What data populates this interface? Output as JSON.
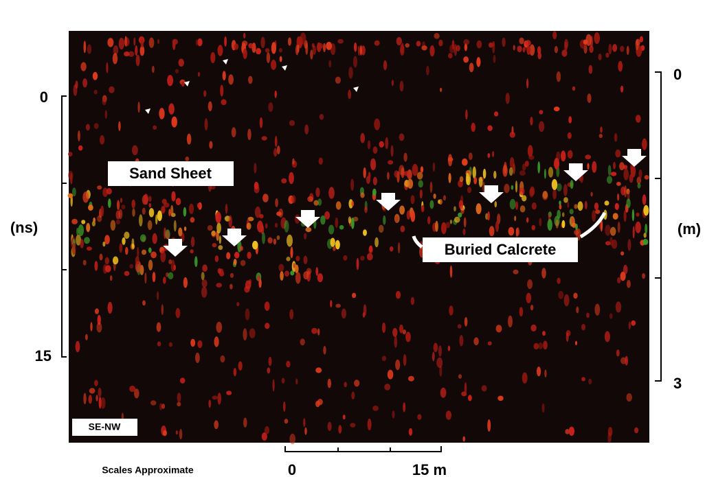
{
  "left_axis": {
    "ticks": [
      "0",
      "15"
    ],
    "unit": "(ns)"
  },
  "right_axis": {
    "ticks": [
      "0",
      "3"
    ],
    "unit": "(m)"
  },
  "annotations": [
    "Sand Sheet",
    "Buried Calcrete"
  ],
  "profile_direction": "SE-NW",
  "scale_bar": {
    "note": "Scales Approximate",
    "start": "0",
    "end": "15 m"
  }
}
